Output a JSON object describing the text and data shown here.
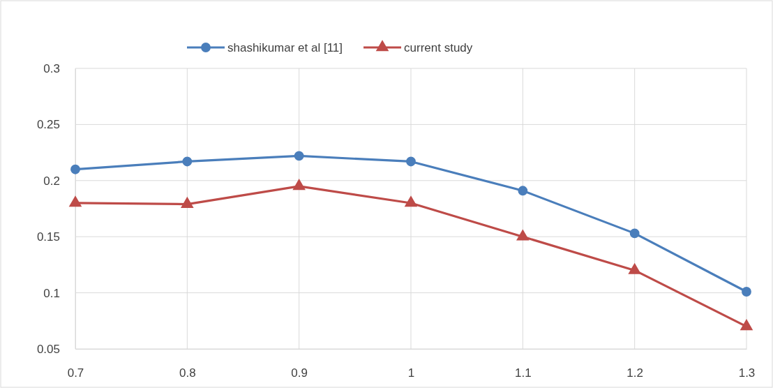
{
  "chart_data": {
    "type": "line",
    "x": [
      0.7,
      0.8,
      0.9,
      1,
      1.1,
      1.2,
      1.3
    ],
    "xlim": [
      0.7,
      1.3
    ],
    "xticks": [
      0.7,
      0.8,
      0.9,
      1,
      1.1,
      1.2,
      1.3
    ],
    "ylim": [
      0.05,
      0.3
    ],
    "yticks": [
      0.05,
      0.1,
      0.15,
      0.2,
      0.25,
      0.3
    ],
    "grid": true,
    "legend": "top",
    "line_style": "solid",
    "series": [
      {
        "name": "shashikumar et al [11]",
        "color": "#4a7ebb",
        "marker": "circle",
        "values": [
          0.21,
          0.217,
          0.222,
          0.217,
          0.191,
          0.153,
          0.101
        ]
      },
      {
        "name": "current study",
        "color": "#be4b48",
        "marker": "triangle",
        "values": [
          0.18,
          0.179,
          0.195,
          0.18,
          0.15,
          0.12,
          0.07
        ]
      }
    ]
  }
}
